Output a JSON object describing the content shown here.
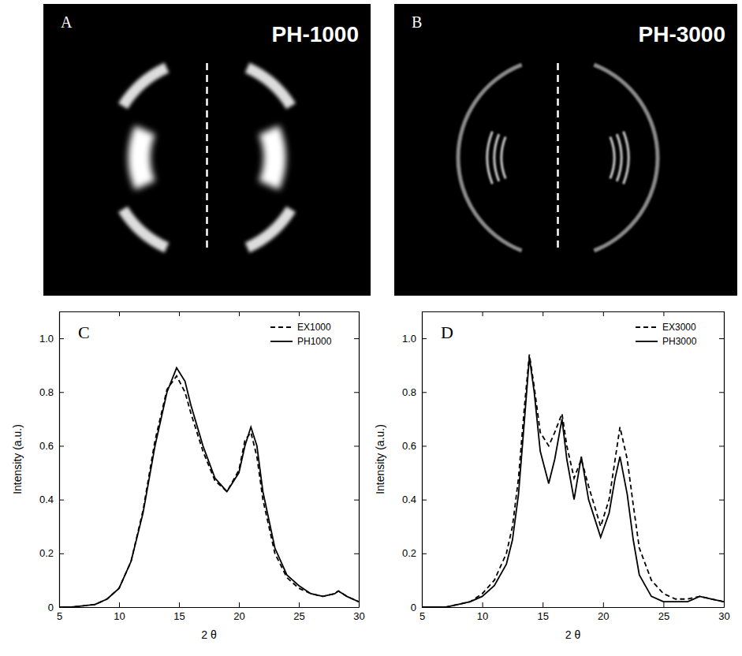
{
  "panels": [
    {
      "letter": "A",
      "label": "PH-1000"
    },
    {
      "letter": "B",
      "label": "PH-3000"
    }
  ],
  "chart_data": [
    {
      "type": "line",
      "title": "C",
      "x_label": "2 θ",
      "y_label": "Intensity (a.u.)",
      "x": [
        5,
        6,
        7,
        8,
        9,
        10,
        11,
        12,
        13,
        14,
        14.8,
        15.5,
        16,
        17,
        18,
        19,
        20,
        20.5,
        21,
        21.5,
        22,
        23,
        24,
        25,
        26,
        27,
        28,
        28.3,
        29,
        30
      ],
      "series": [
        {
          "name": "EX1000",
          "color": "#000000",
          "line_style": "dashed",
          "values": [
            0,
            0,
            0.005,
            0.01,
            0.03,
            0.07,
            0.17,
            0.36,
            0.62,
            0.81,
            0.86,
            0.8,
            0.72,
            0.58,
            0.47,
            0.43,
            0.51,
            0.62,
            0.65,
            0.56,
            0.4,
            0.2,
            0.11,
            0.07,
            0.05,
            0.04,
            0.05,
            0.06,
            0.04,
            0.02
          ]
        },
        {
          "name": "PH1000",
          "color": "#000000",
          "line_style": "solid",
          "values": [
            0,
            0,
            0.005,
            0.01,
            0.03,
            0.07,
            0.17,
            0.35,
            0.6,
            0.8,
            0.89,
            0.84,
            0.75,
            0.6,
            0.48,
            0.43,
            0.5,
            0.6,
            0.67,
            0.6,
            0.43,
            0.22,
            0.12,
            0.08,
            0.05,
            0.04,
            0.05,
            0.06,
            0.04,
            0.02
          ]
        }
      ],
      "xlim": [
        5,
        30
      ],
      "xticks": [
        5,
        10,
        15,
        20,
        25,
        30
      ],
      "ylim": [
        0,
        1.1
      ],
      "yticks": [
        0,
        0.2,
        0.4,
        0.6,
        0.8,
        {
          "value": 1,
          "label": "1.0"
        }
      ],
      "grid": false,
      "legend": "upper right"
    },
    {
      "type": "line",
      "title": "D",
      "x_label": "2 θ",
      "y_label": "Intensity (a.u.)",
      "x": [
        5,
        6,
        7,
        8,
        9,
        10,
        11,
        12,
        12.5,
        13,
        13.5,
        13.9,
        14.3,
        14.8,
        15.5,
        16,
        16.6,
        17,
        17.6,
        18.2,
        18.8,
        19.8,
        20.5,
        21,
        21.4,
        22,
        22.5,
        23,
        24,
        25,
        26,
        27,
        28,
        29,
        30
      ],
      "series": [
        {
          "name": "EX3000",
          "color": "#000000",
          "line_style": "dashed",
          "values": [
            0,
            0,
            0,
            0.01,
            0.02,
            0.05,
            0.1,
            0.2,
            0.3,
            0.48,
            0.75,
            0.94,
            0.82,
            0.65,
            0.6,
            0.65,
            0.72,
            0.6,
            0.48,
            0.55,
            0.45,
            0.3,
            0.4,
            0.55,
            0.67,
            0.55,
            0.38,
            0.22,
            0.1,
            0.05,
            0.03,
            0.03,
            0.04,
            0.03,
            0.02
          ]
        },
        {
          "name": "PH3000",
          "color": "#000000",
          "line_style": "solid",
          "values": [
            0,
            0,
            0,
            0.01,
            0.02,
            0.04,
            0.08,
            0.16,
            0.25,
            0.42,
            0.7,
            0.93,
            0.8,
            0.58,
            0.46,
            0.55,
            0.7,
            0.55,
            0.4,
            0.56,
            0.4,
            0.26,
            0.35,
            0.48,
            0.56,
            0.42,
            0.25,
            0.12,
            0.04,
            0.02,
            0.02,
            0.02,
            0.04,
            0.03,
            0.02
          ]
        }
      ],
      "xlim": [
        5,
        30
      ],
      "xticks": [
        5,
        10,
        15,
        20,
        25,
        30
      ],
      "ylim": [
        0,
        1.1
      ],
      "yticks": [
        0,
        0.2,
        0.4,
        0.6,
        0.8,
        {
          "value": 1,
          "label": "1.0"
        }
      ],
      "grid": false,
      "legend": "upper right"
    }
  ]
}
